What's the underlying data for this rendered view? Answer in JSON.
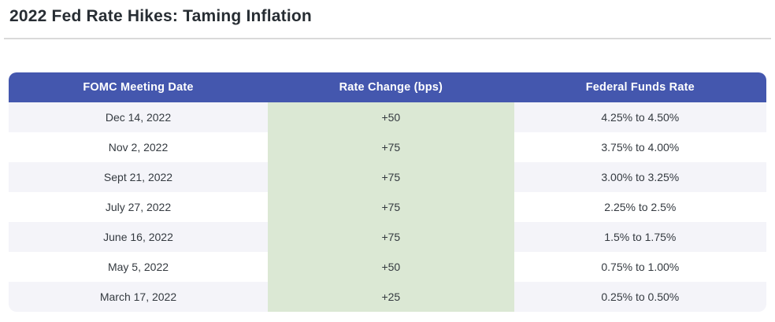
{
  "page": {
    "title": "2022 Fed Rate Hikes: Taming Inflation"
  },
  "table": {
    "columns": [
      {
        "label": "FOMC Meeting Date"
      },
      {
        "label": "Rate Change (bps)"
      },
      {
        "label": "Federal Funds Rate"
      }
    ],
    "rows": [
      {
        "date": "Dec 14, 2022",
        "change": "+50",
        "rate": "4.25% to 4.50%"
      },
      {
        "date": "Nov 2, 2022",
        "change": "+75",
        "rate": "3.75% to 4.00%"
      },
      {
        "date": "Sept 21, 2022",
        "change": "+75",
        "rate": "3.00% to 3.25%"
      },
      {
        "date": "July 27, 2022",
        "change": "+75",
        "rate": "2.25% to 2.5%"
      },
      {
        "date": "June 16, 2022",
        "change": "+75",
        "rate": "1.5% to 1.75%"
      },
      {
        "date": "May 5, 2022",
        "change": "+50",
        "rate": "0.75% to 1.00%"
      },
      {
        "date": "March 17, 2022",
        "change": "+25",
        "rate": "0.25% to 0.50%"
      }
    ]
  },
  "colors": {
    "header_bg": "#4457ae",
    "header_text": "#ffffff",
    "rate_change_column_bg": "#dbe8d4",
    "row_stripe_bg": "#f4f4f9",
    "row_alt_bg": "#ffffff",
    "title_text": "#272d33",
    "cell_text": "#343a40",
    "divider": "#d9d9d9"
  },
  "chart_data": {
    "type": "table",
    "title": "2022 Fed Rate Hikes: Taming Inflation",
    "columns": [
      "FOMC Meeting Date",
      "Rate Change (bps)",
      "Federal Funds Rate"
    ],
    "rows": [
      [
        "Dec 14, 2022",
        "+50",
        "4.25% to 4.50%"
      ],
      [
        "Nov 2, 2022",
        "+75",
        "3.75% to 4.00%"
      ],
      [
        "Sept 21, 2022",
        "+75",
        "3.00% to 3.25%"
      ],
      [
        "July 27, 2022",
        "+75",
        "2.25% to 2.5%"
      ],
      [
        "June 16, 2022",
        "+75",
        "1.5% to 1.75%"
      ],
      [
        "May 5, 2022",
        "+50",
        "0.75% to 1.00%"
      ],
      [
        "March 17, 2022",
        "+25",
        "0.25% to 0.50%"
      ]
    ],
    "rate_change_bps": [
      50,
      75,
      75,
      75,
      75,
      50,
      25
    ]
  }
}
